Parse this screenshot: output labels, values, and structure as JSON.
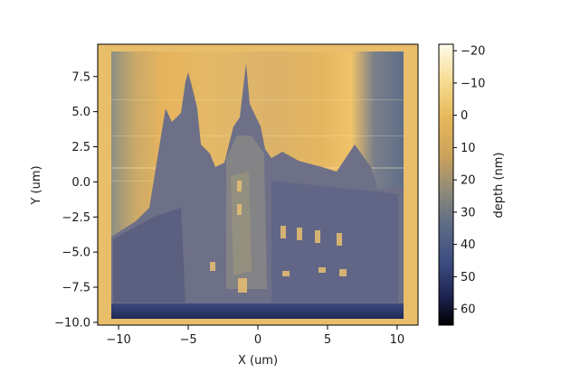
{
  "chart_data": {
    "type": "heatmap",
    "description_visible": "AFM-style depth map rendering a grayscale photo of a gothic building",
    "xlabel": "X (um)",
    "ylabel": "Y (um)",
    "xlim": [
      -11.5,
      11.5
    ],
    "ylim": [
      -10.2,
      9.8
    ],
    "xticks": [
      -10,
      -5,
      0,
      5,
      10
    ],
    "xtick_labels": [
      "−10",
      "−5",
      "0",
      "5",
      "10"
    ],
    "yticks": [
      7.5,
      5.0,
      2.5,
      0.0,
      -2.5,
      -5.0,
      -7.5,
      -10.0
    ],
    "ytick_labels": [
      "7.5",
      "5.0",
      "2.5",
      "0.0",
      "−2.5",
      "−5.0",
      "−7.5",
      "−10.0"
    ],
    "colorbar": {
      "label": "depth (nm)",
      "range": [
        -22,
        65
      ],
      "reversed": true,
      "ticks": [
        -20,
        -10,
        0,
        10,
        20,
        30,
        40,
        50,
        60
      ],
      "tick_labels": [
        "−20",
        "−10",
        "0",
        "10",
        "20",
        "30",
        "40",
        "50",
        "60"
      ],
      "colormap_stops": [
        "#fffbe8",
        "#f6d988",
        "#e2b55a",
        "#c9a65d",
        "#8f8b78",
        "#5e6d85",
        "#3c4b80",
        "#1d2350",
        "#000000"
      ]
    }
  }
}
